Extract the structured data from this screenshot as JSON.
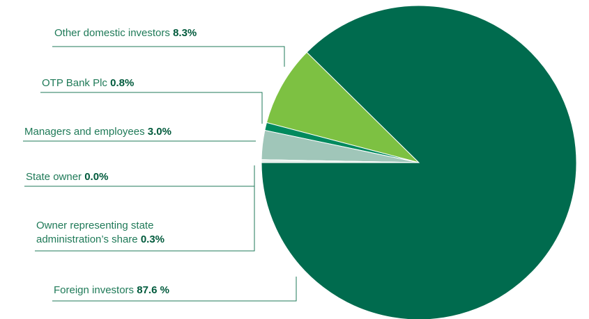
{
  "chart_data": {
    "type": "pie",
    "categories": [
      "Other domestic investors",
      "OTP Bank Plc",
      "Managers and employees",
      "State owner",
      "Owner representing state administration’s share",
      "Foreign investors"
    ],
    "values": [
      8.3,
      0.8,
      3.0,
      0.0,
      0.3,
      87.6
    ],
    "value_labels": [
      "8.3%",
      "0.8%",
      "3.0%",
      "0.0%",
      "0.3%",
      "87.6 %"
    ],
    "colors": [
      "#7dc142",
      "#008a5e",
      "#a0c6b9",
      "#c9ddd5",
      "#e4eee9",
      "#006b4e"
    ]
  }
}
